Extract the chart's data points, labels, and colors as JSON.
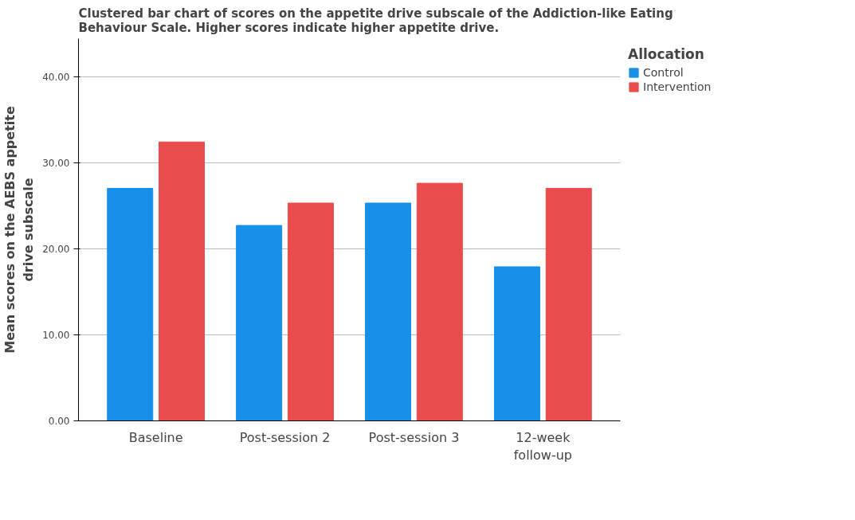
{
  "chart_data": {
    "type": "bar",
    "title": "Clustered bar chart of scores on the appetite drive subscale of the Addiction-like Eating Behaviour Scale. Higher scores indicate higher appetite drive.",
    "ylabel": "Mean scores on the AEBS appetite drive subscale",
    "legend_title": "Allocation",
    "categories": [
      "Baseline",
      "Post-session 2",
      "Post-session 3",
      "12-week follow-up"
    ],
    "series": [
      {
        "name": "Control",
        "color": "#1690e8",
        "values": [
          27.0,
          22.7,
          25.3,
          17.9
        ]
      },
      {
        "name": "Intervention",
        "color": "#e94c4c",
        "values": [
          32.4,
          25.3,
          27.6,
          27.0
        ]
      }
    ],
    "ylim": [
      0,
      44.4
    ],
    "yticks": [
      {
        "value": 0,
        "label": "0.00"
      },
      {
        "value": 10,
        "label": "10.00"
      },
      {
        "value": 20,
        "label": "20.00"
      },
      {
        "value": 30,
        "label": "30.00"
      },
      {
        "value": 40,
        "label": "40.00"
      }
    ],
    "grid": "y",
    "legend": "top right"
  }
}
